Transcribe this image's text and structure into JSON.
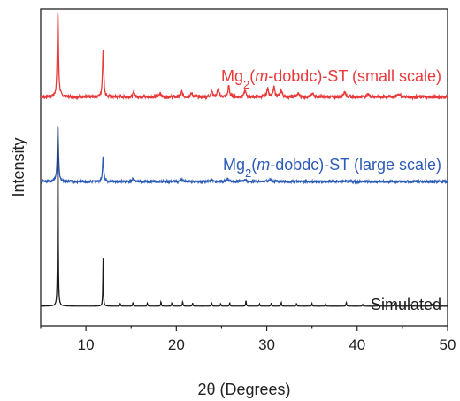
{
  "chart_data": {
    "type": "line",
    "xlabel": "2θ (Degrees)",
    "ylabel": "Intensity",
    "xlim": [
      5,
      50
    ],
    "x_ticks": [
      10,
      20,
      30,
      40,
      50
    ],
    "y_ticks_shown": false,
    "grid": false,
    "series": [
      {
        "name": "Mg2(m-dobdc)-ST (small scale)",
        "label_parts": {
          "pre": "Mg",
          "sub": "2",
          "paren_open": "(",
          "italic": "m",
          "post": "-dobdc)-ST (small scale)"
        },
        "color": "#e8393b",
        "baseline": 0.722,
        "peaks": [
          {
            "x": 6.9,
            "h": 0.27,
            "w": 0.16
          },
          {
            "x": 11.9,
            "h": 0.152,
            "w": 0.16
          },
          {
            "x": 15.3,
            "h": 0.018,
            "w": 0.18
          },
          {
            "x": 18.2,
            "h": 0.014,
            "w": 0.2
          },
          {
            "x": 20.6,
            "h": 0.016,
            "w": 0.2
          },
          {
            "x": 21.7,
            "h": 0.012,
            "w": 0.2
          },
          {
            "x": 23.9,
            "h": 0.02,
            "w": 0.22
          },
          {
            "x": 24.6,
            "h": 0.022,
            "w": 0.22
          },
          {
            "x": 25.8,
            "h": 0.035,
            "w": 0.2
          },
          {
            "x": 27.6,
            "h": 0.02,
            "w": 0.22
          },
          {
            "x": 30.1,
            "h": 0.026,
            "w": 0.25
          },
          {
            "x": 30.8,
            "h": 0.03,
            "w": 0.22
          },
          {
            "x": 31.6,
            "h": 0.02,
            "w": 0.25
          },
          {
            "x": 33.5,
            "h": 0.01,
            "w": 0.3
          },
          {
            "x": 35.1,
            "h": 0.01,
            "w": 0.3
          },
          {
            "x": 38.6,
            "h": 0.016,
            "w": 0.3
          },
          {
            "x": 41.2,
            "h": 0.008,
            "w": 0.35
          },
          {
            "x": 44.6,
            "h": 0.01,
            "w": 0.35
          }
        ]
      },
      {
        "name": "Mg2(m-dobdc)-ST (large scale)",
        "label_parts": {
          "pre": "Mg",
          "sub": "2",
          "paren_open": "(",
          "italic": "m",
          "post": "-dobdc)-ST (large scale)"
        },
        "color": "#2d5cb8",
        "baseline": 0.455,
        "peaks": [
          {
            "x": 6.9,
            "h": 0.175,
            "w": 0.16
          },
          {
            "x": 11.9,
            "h": 0.078,
            "w": 0.16
          },
          {
            "x": 15.2,
            "h": 0.01,
            "w": 0.2
          },
          {
            "x": 20.6,
            "h": 0.006,
            "w": 0.25
          },
          {
            "x": 23.9,
            "h": 0.006,
            "w": 0.25
          },
          {
            "x": 25.7,
            "h": 0.008,
            "w": 0.25
          },
          {
            "x": 27.6,
            "h": 0.006,
            "w": 0.25
          },
          {
            "x": 30.4,
            "h": 0.008,
            "w": 0.3
          }
        ]
      },
      {
        "name": "Simulated",
        "label_parts": {
          "pre": "Simulated",
          "sub": "",
          "paren_open": "",
          "italic": "",
          "post": ""
        },
        "color": "#1a1a1a",
        "baseline": 0.062,
        "peaks": [
          {
            "x": 6.9,
            "h": 0.615,
            "w": 0.07
          },
          {
            "x": 11.9,
            "h": 0.15,
            "w": 0.07
          },
          {
            "x": 13.8,
            "h": 0.008,
            "w": 0.08
          },
          {
            "x": 15.2,
            "h": 0.012,
            "w": 0.08
          },
          {
            "x": 16.8,
            "h": 0.01,
            "w": 0.08
          },
          {
            "x": 18.3,
            "h": 0.014,
            "w": 0.08
          },
          {
            "x": 19.5,
            "h": 0.01,
            "w": 0.08
          },
          {
            "x": 20.7,
            "h": 0.014,
            "w": 0.08
          },
          {
            "x": 21.8,
            "h": 0.01,
            "w": 0.08
          },
          {
            "x": 23.9,
            "h": 0.012,
            "w": 0.08
          },
          {
            "x": 24.9,
            "h": 0.008,
            "w": 0.08
          },
          {
            "x": 25.9,
            "h": 0.01,
            "w": 0.08
          },
          {
            "x": 27.7,
            "h": 0.018,
            "w": 0.08
          },
          {
            "x": 29.2,
            "h": 0.008,
            "w": 0.08
          },
          {
            "x": 30.5,
            "h": 0.01,
            "w": 0.08
          },
          {
            "x": 31.6,
            "h": 0.012,
            "w": 0.08
          },
          {
            "x": 33.3,
            "h": 0.008,
            "w": 0.08
          },
          {
            "x": 35.0,
            "h": 0.008,
            "w": 0.08
          },
          {
            "x": 36.5,
            "h": 0.006,
            "w": 0.08
          },
          {
            "x": 38.8,
            "h": 0.012,
            "w": 0.08
          },
          {
            "x": 40.6,
            "h": 0.006,
            "w": 0.08
          },
          {
            "x": 42.4,
            "h": 0.006,
            "w": 0.08
          },
          {
            "x": 44.1,
            "h": 0.008,
            "w": 0.08
          },
          {
            "x": 46.0,
            "h": 0.006,
            "w": 0.08
          },
          {
            "x": 48.3,
            "h": 0.006,
            "w": 0.08
          }
        ]
      }
    ]
  }
}
